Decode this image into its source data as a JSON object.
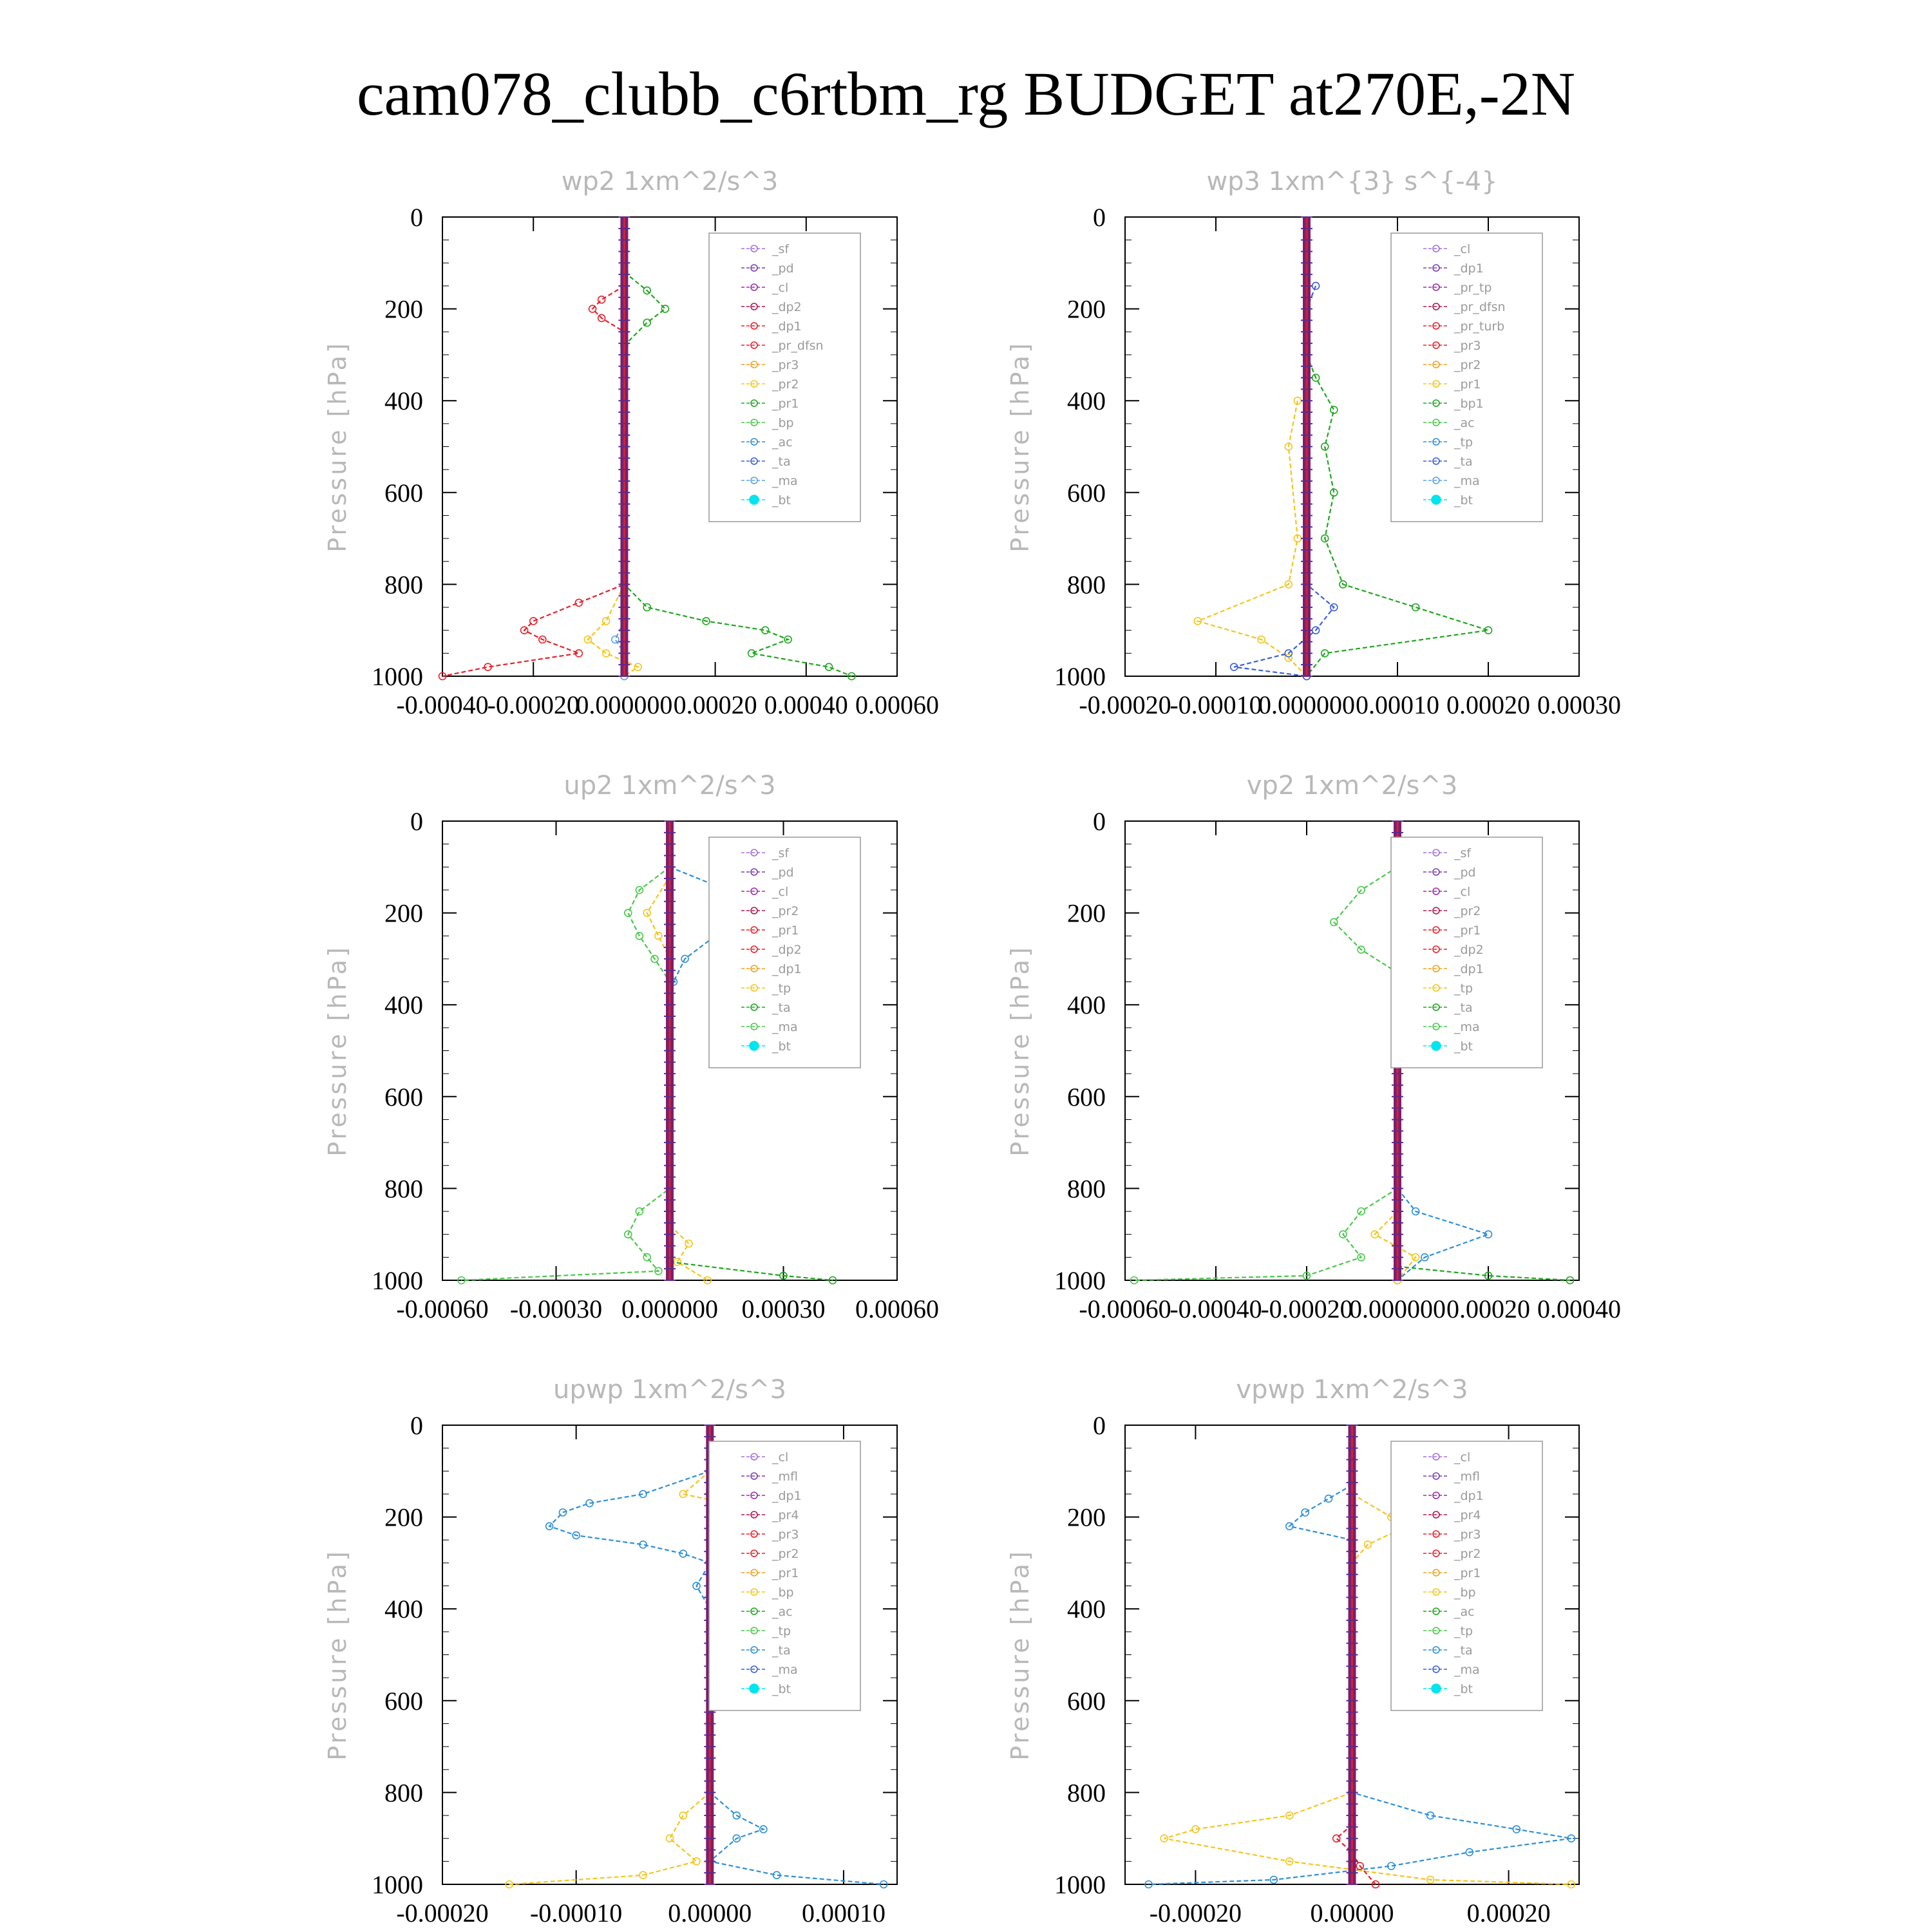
{
  "title": "cam078_clubb_c6rtbm_rg  BUDGET at270E,-2N",
  "chart_data": [
    {
      "type": "line",
      "panel_title": "wp2  1xm^2/s^3",
      "ylabel": "Pressure [hPa]",
      "yticks": [
        "0",
        "200",
        "400",
        "600",
        "800",
        "1000"
      ],
      "ylim": [
        0,
        1000
      ],
      "xticks": [
        "-0.00040",
        "-0.00020",
        "0.000000",
        "0.00020",
        "0.00040",
        "0.00060"
      ],
      "xlim": [
        -0.0004,
        0.0006
      ],
      "legend_location": "top-right",
      "legend": [
        "_sf",
        "_pd",
        "_cl",
        "_dp2",
        "_dp1",
        "_pr_dfsn",
        "_pr3",
        "_pr2",
        "_pr1",
        "_bp",
        "_ac",
        "_ta",
        "_ma",
        "_bt"
      ],
      "series": [
        {
          "name": "_dp1",
          "color": "#e8202a",
          "p": [
            150,
            180,
            200,
            220,
            250,
            800,
            840,
            880,
            900,
            920,
            950,
            980,
            1000
          ],
          "x": [
            0,
            -5e-05,
            -7e-05,
            -5e-05,
            0,
            0,
            -0.0001,
            -0.0002,
            -0.00022,
            -0.00018,
            -0.0001,
            -0.0003,
            -0.0004
          ]
        },
        {
          "name": "_pr1",
          "color": "#1ea71e",
          "p": [
            120,
            160,
            200,
            230,
            280,
            800,
            850,
            880,
            900,
            920,
            950,
            980,
            1000
          ],
          "x": [
            0,
            5e-05,
            9e-05,
            5e-05,
            0,
            0,
            5e-05,
            0.00018,
            0.00031,
            0.00036,
            0.00028,
            0.00045,
            0.0005
          ]
        },
        {
          "name": "_pr2",
          "color": "#f5c518",
          "p": [
            800,
            880,
            920,
            950,
            980,
            1000
          ],
          "x": [
            0,
            -4e-05,
            -8e-05,
            -4e-05,
            3e-05,
            0
          ]
        },
        {
          "name": "_ac",
          "color": "#5aa0e8",
          "p": [
            880,
            920,
            950,
            1000
          ],
          "x": [
            0,
            -2e-05,
            0,
            0
          ]
        }
      ]
    },
    {
      "type": "line",
      "panel_title": "wp3  1xm^{3} s^{-4}",
      "ylabel": "Pressure [hPa]",
      "yticks": [
        "0",
        "200",
        "400",
        "600",
        "800",
        "1000"
      ],
      "ylim": [
        0,
        1000
      ],
      "xticks": [
        "-0.00020",
        "-0.00010",
        "0.000000",
        "0.00010",
        "0.00020",
        "0.00030"
      ],
      "xlim": [
        -0.0002,
        0.0003
      ],
      "legend_location": "top-right",
      "legend": [
        "_cl",
        "_dp1",
        "_pr_tp",
        "_pr_dfsn",
        "_pr_turb",
        "_pr3",
        "_pr2",
        "_pr1",
        "_bp1",
        "_ac",
        "_tp",
        "_ta",
        "_ma",
        "_bt"
      ],
      "series": [
        {
          "name": "_bp1",
          "color": "#1ea71e",
          "p": [
            300,
            350,
            420,
            500,
            600,
            700,
            800,
            850,
            900,
            950,
            1000
          ],
          "x": [
            0,
            1e-05,
            3e-05,
            2e-05,
            3e-05,
            2e-05,
            4e-05,
            0.00012,
            0.0002,
            2e-05,
            0
          ]
        },
        {
          "name": "_pr2",
          "color": "#f5c518",
          "p": [
            400,
            500,
            700,
            800,
            880,
            920,
            960,
            1000
          ],
          "x": [
            -1e-05,
            -2e-05,
            -1e-05,
            -2e-05,
            -0.00012,
            -5e-05,
            -2e-05,
            0
          ]
        },
        {
          "name": "_tp",
          "color": "#3b5fd9",
          "p": [
            150,
            200,
            800,
            850,
            900,
            950,
            980,
            1000
          ],
          "x": [
            1e-05,
            0,
            0,
            3e-05,
            1e-05,
            -2e-05,
            -8e-05,
            0
          ]
        }
      ]
    },
    {
      "type": "line",
      "panel_title": "up2  1xm^2/s^3",
      "ylabel": "Pressure [hPa]",
      "yticks": [
        "0",
        "200",
        "400",
        "600",
        "800",
        "1000"
      ],
      "ylim": [
        0,
        1000
      ],
      "xticks": [
        "-0.00060",
        "-0.00030",
        "0.000000",
        "0.00030",
        "0.00060"
      ],
      "xlim": [
        -0.0006,
        0.0006
      ],
      "legend_location": "top-right",
      "legend": [
        "_sf",
        "_pd",
        "_cl",
        "_pr2",
        "_pr1",
        "_dp2",
        "_dp1",
        "_tp",
        "_ta",
        "_ma",
        "_bt"
      ],
      "series": [
        {
          "name": "_tp",
          "color": "#2d8fd9",
          "p": [
            100,
            150,
            200,
            250,
            300,
            350,
            400
          ],
          "x": [
            0,
            0.00015,
            0.00022,
            0.00012,
            4e-05,
            1e-05,
            0
          ]
        },
        {
          "name": "_dp1",
          "color": "#48c94a",
          "p": [
            100,
            150,
            200,
            250,
            300,
            350,
            800,
            850,
            900,
            950,
            980,
            1000
          ],
          "x": [
            0,
            -8e-05,
            -0.00011,
            -8e-05,
            -4e-05,
            0,
            0,
            -8e-05,
            -0.00011,
            -6e-05,
            -3e-05,
            -0.00055
          ]
        },
        {
          "name": "_pr2",
          "color": "#f5c518",
          "p": [
            120,
            200,
            250,
            300,
            880,
            920,
            960,
            1000
          ],
          "x": [
            0,
            -6e-05,
            -3e-05,
            0,
            0,
            5e-05,
            2e-05,
            0.0001
          ]
        },
        {
          "name": "_pr1",
          "color": "#1ea71e",
          "p": [
            960,
            990,
            1000
          ],
          "x": [
            0,
            0.0003,
            0.00043
          ]
        }
      ]
    },
    {
      "type": "line",
      "panel_title": "vp2  1xm^2/s^3",
      "ylabel": "Pressure [hPa]",
      "yticks": [
        "0",
        "200",
        "400",
        "600",
        "800",
        "1000"
      ],
      "ylim": [
        0,
        1000
      ],
      "xticks": [
        "-0.00060",
        "-0.00040",
        "-0.00020",
        "0.000000",
        "0.00020",
        "0.00040"
      ],
      "xlim": [
        -0.0006,
        0.0004
      ],
      "legend_location": "top-right",
      "legend": [
        "_sf",
        "_pd",
        "_cl",
        "_pr2",
        "_pr1",
        "_dp2",
        "_dp1",
        "_tp",
        "_ta",
        "_ma",
        "_bt"
      ],
      "series": [
        {
          "name": "_tp",
          "color": "#2d8fd9",
          "p": [
            100,
            150,
            200,
            250,
            300,
            350,
            800,
            850,
            900,
            950,
            1000
          ],
          "x": [
            0,
            5e-05,
            0.0001,
            6e-05,
            3e-05,
            0,
            0,
            4e-05,
            0.0002,
            6e-05,
            0
          ]
        },
        {
          "name": "_dp1",
          "color": "#48c94a",
          "p": [
            100,
            150,
            220,
            280,
            330,
            800,
            850,
            900,
            950,
            990,
            1000
          ],
          "x": [
            0,
            -8e-05,
            -0.00014,
            -8e-05,
            0,
            0,
            -8e-05,
            -0.00012,
            -8e-05,
            -0.0002,
            -0.00058
          ]
        },
        {
          "name": "_pr2",
          "color": "#f5c518",
          "p": [
            150,
            200,
            250,
            850,
            900,
            950,
            1000
          ],
          "x": [
            0,
            5e-05,
            0,
            0,
            -5e-05,
            4e-05,
            0
          ]
        },
        {
          "name": "_pr1",
          "color": "#1ea71e",
          "p": [
            970,
            990,
            1000
          ],
          "x": [
            0,
            0.0002,
            0.00038
          ]
        }
      ]
    },
    {
      "type": "line",
      "panel_title": "upwp  1xm^2/s^3",
      "ylabel": "Pressure [hPa]",
      "yticks": [
        "0",
        "200",
        "400",
        "600",
        "800",
        "1000"
      ],
      "ylim": [
        0,
        1000
      ],
      "xticks": [
        "-0.00020",
        "-0.00010",
        "0.00000",
        "0.00010"
      ],
      "xlim": [
        -0.0002,
        0.00014
      ],
      "legend_location": "top-right",
      "legend": [
        "_cl",
        "_mfl",
        "_dp1",
        "_pr4",
        "_pr3",
        "_pr2",
        "_pr1",
        "_bp",
        "_ac",
        "_tp",
        "_ta",
        "_ma",
        "_bt"
      ],
      "series": [
        {
          "name": "_tp",
          "color": "#2d8fd9",
          "p": [
            100,
            150,
            170,
            190,
            220,
            240,
            260,
            280,
            300,
            350,
            400,
            800,
            850,
            880,
            900,
            950,
            980,
            1000
          ],
          "x": [
            0,
            -5e-05,
            -9e-05,
            -0.00011,
            -0.00012,
            -0.0001,
            -5e-05,
            -2e-05,
            0,
            -1e-05,
            0,
            0,
            2e-05,
            4e-05,
            2e-05,
            0,
            5e-05,
            0.00013
          ]
        },
        {
          "name": "_pr2",
          "color": "#f5c518",
          "p": [
            100,
            150,
            200,
            220,
            250,
            280,
            800,
            850,
            900,
            950,
            980,
            1000
          ],
          "x": [
            0,
            -2e-05,
            6e-05,
            0.0001,
            5e-05,
            0,
            0,
            -2e-05,
            -3e-05,
            -1e-05,
            -5e-05,
            -0.00015
          ]
        },
        {
          "name": "_dp1",
          "color": "#b0184a",
          "p": [
            150,
            200,
            250
          ],
          "x": [
            0,
            1e-05,
            0
          ]
        }
      ]
    },
    {
      "type": "line",
      "panel_title": "vpwp  1xm^2/s^3",
      "ylabel": "Pressure [hPa]",
      "yticks": [
        "0",
        "200",
        "400",
        "600",
        "800",
        "1000"
      ],
      "ylim": [
        0,
        1000
      ],
      "xticks": [
        "-0.00020",
        "0.00000",
        "0.00020"
      ],
      "xlim": [
        -0.00029,
        0.00029
      ],
      "legend_location": "top-right",
      "legend": [
        "_cl",
        "_mfl",
        "_dp1",
        "_pr4",
        "_pr3",
        "_pr2",
        "_pr1",
        "_bp",
        "_ac",
        "_tp",
        "_ta",
        "_ma",
        "_bt"
      ],
      "series": [
        {
          "name": "_tp",
          "color": "#2d8fd9",
          "p": [
            130,
            160,
            190,
            220,
            250,
            800,
            850,
            880,
            900,
            930,
            960,
            990,
            1000
          ],
          "x": [
            0,
            -3e-05,
            -6e-05,
            -8e-05,
            0,
            0,
            0.0001,
            0.00021,
            0.00028,
            0.00015,
            5e-05,
            -0.0001,
            -0.00026
          ]
        },
        {
          "name": "_pr2",
          "color": "#f5c518",
          "p": [
            150,
            200,
            220,
            260,
            300,
            800,
            850,
            880,
            900,
            950,
            990,
            1000
          ],
          "x": [
            0,
            5e-05,
            7e-05,
            2e-05,
            0,
            0,
            -8e-05,
            -0.0002,
            -0.00024,
            -8e-05,
            0.0001,
            0.00028
          ]
        },
        {
          "name": "_dp1",
          "color": "#e8202a",
          "p": [
            870,
            900,
            930,
            960,
            1000
          ],
          "x": [
            0,
            -2e-05,
            0,
            1e-05,
            3e-05
          ]
        }
      ]
    }
  ]
}
